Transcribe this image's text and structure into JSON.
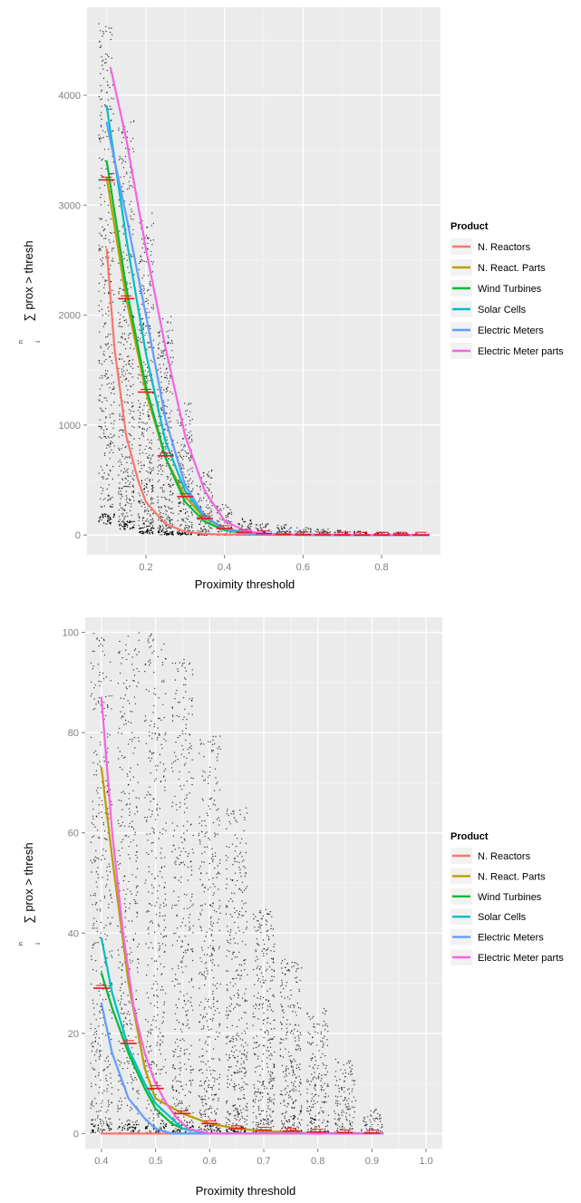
{
  "chart_data": [
    {
      "type": "scatter",
      "title": "",
      "xlabel": "Proximity threshold",
      "ylabel": "∑ prox > thresh",
      "ylabel_sum_top": "n",
      "ylabel_sum_bottom": "i",
      "xlim": [
        0.05,
        0.95
      ],
      "ylim": [
        -180,
        4800
      ],
      "x_ticks": [
        0.2,
        0.4,
        0.6,
        0.8
      ],
      "x_tick_labels": [
        "0.2",
        "0.4",
        "0.6",
        "0.8"
      ],
      "y_ticks": [
        0,
        1000,
        2000,
        3000,
        4000
      ],
      "y_tick_labels": [
        "0",
        "1000",
        "2000",
        "3000",
        "4000"
      ],
      "grid": true,
      "legend": {
        "title": "Product",
        "placement": "right",
        "entries": [
          "N. Reactors",
          "N. React. Parts",
          "Wind Turbines",
          "Solar Cells",
          "Electric Meters",
          "Electric Meter parts"
        ]
      },
      "point_clusters": [
        {
          "x": 0.1,
          "y_min": 100,
          "y_max": 4650
        },
        {
          "x": 0.15,
          "y_min": 50,
          "y_max": 3800
        },
        {
          "x": 0.2,
          "y_min": 10,
          "y_max": 2950
        },
        {
          "x": 0.25,
          "y_min": 0,
          "y_max": 2000
        },
        {
          "x": 0.3,
          "y_min": 0,
          "y_max": 1200
        },
        {
          "x": 0.35,
          "y_min": 0,
          "y_max": 600
        },
        {
          "x": 0.4,
          "y_min": 0,
          "y_max": 280
        },
        {
          "x": 0.45,
          "y_min": 0,
          "y_max": 150
        },
        {
          "x": 0.5,
          "y_min": 0,
          "y_max": 110
        },
        {
          "x": 0.55,
          "y_min": 0,
          "y_max": 95
        },
        {
          "x": 0.6,
          "y_min": 0,
          "y_max": 70
        },
        {
          "x": 0.65,
          "y_min": 0,
          "y_max": 55
        },
        {
          "x": 0.7,
          "y_min": 0,
          "y_max": 45
        },
        {
          "x": 0.75,
          "y_min": 0,
          "y_max": 35
        },
        {
          "x": 0.8,
          "y_min": 0,
          "y_max": 25
        },
        {
          "x": 0.85,
          "y_min": 0,
          "y_max": 18
        },
        {
          "x": 0.9,
          "y_min": 0,
          "y_max": 10
        }
      ],
      "series": [
        {
          "name": "N. Reactors",
          "color": "#F8766D",
          "x": [
            0.1,
            0.12,
            0.15,
            0.18,
            0.2,
            0.25,
            0.3,
            0.35,
            0.4,
            0.5,
            0.6,
            0.7,
            0.8,
            0.92
          ],
          "y": [
            2600,
            1700,
            900,
            500,
            300,
            100,
            30,
            10,
            5,
            2,
            1,
            0,
            0,
            0
          ]
        },
        {
          "name": "N. React. Parts",
          "color": "#B79F00",
          "x": [
            0.1,
            0.15,
            0.2,
            0.25,
            0.3,
            0.35,
            0.4,
            0.45,
            0.5,
            0.6,
            0.7,
            0.8,
            0.92
          ],
          "y": [
            3250,
            2150,
            1300,
            700,
            350,
            150,
            60,
            25,
            10,
            3,
            1,
            0,
            0
          ]
        },
        {
          "name": "Wind Turbines",
          "color": "#00BA38",
          "x": [
            0.1,
            0.15,
            0.2,
            0.25,
            0.3,
            0.35,
            0.4,
            0.45,
            0.5,
            0.6,
            0.7,
            0.8,
            0.92
          ],
          "y": [
            3400,
            2250,
            1350,
            700,
            300,
            120,
            45,
            15,
            5,
            1,
            0,
            0,
            0
          ]
        },
        {
          "name": "Solar Cells",
          "color": "#00BFC4",
          "x": [
            0.1,
            0.15,
            0.2,
            0.25,
            0.3,
            0.35,
            0.4,
            0.45,
            0.5,
            0.6,
            0.7,
            0.8,
            0.92
          ],
          "y": [
            3900,
            2700,
            1650,
            850,
            400,
            160,
            60,
            20,
            7,
            2,
            0,
            0,
            0
          ]
        },
        {
          "name": "Electric Meters",
          "color": "#619CFF",
          "x": [
            0.1,
            0.15,
            0.2,
            0.25,
            0.3,
            0.35,
            0.4,
            0.45,
            0.5,
            0.6,
            0.7,
            0.8,
            0.92
          ],
          "y": [
            3750,
            2900,
            2000,
            1050,
            450,
            170,
            55,
            15,
            5,
            1,
            0,
            0,
            0
          ]
        },
        {
          "name": "Electric Meter parts",
          "color": "#F564E3",
          "x": [
            0.11,
            0.15,
            0.2,
            0.25,
            0.3,
            0.35,
            0.4,
            0.45,
            0.5,
            0.6,
            0.7,
            0.8,
            0.92
          ],
          "y": [
            4250,
            3600,
            2600,
            1700,
            900,
            400,
            130,
            40,
            12,
            3,
            1,
            0,
            0
          ]
        }
      ],
      "means": [
        {
          "x": 0.1,
          "y": 3230
        },
        {
          "x": 0.15,
          "y": 2150
        },
        {
          "x": 0.2,
          "y": 1300
        },
        {
          "x": 0.25,
          "y": 720
        },
        {
          "x": 0.3,
          "y": 350
        },
        {
          "x": 0.35,
          "y": 150
        },
        {
          "x": 0.4,
          "y": 60
        },
        {
          "x": 0.45,
          "y": 25
        },
        {
          "x": 0.5,
          "y": 12
        },
        {
          "x": 0.55,
          "y": 6
        },
        {
          "x": 0.6,
          "y": 3
        },
        {
          "x": 0.65,
          "y": 2
        },
        {
          "x": 0.7,
          "y": 1
        },
        {
          "x": 0.75,
          "y": 0
        },
        {
          "x": 0.8,
          "y": 0
        },
        {
          "x": 0.85,
          "y": 0
        },
        {
          "x": 0.9,
          "y": 0
        }
      ]
    },
    {
      "type": "scatter",
      "title": "",
      "xlabel": "Proximity threshold",
      "ylabel": "∑ prox > thresh",
      "ylabel_sum_top": "n",
      "ylabel_sum_bottom": "i",
      "xlim": [
        0.37,
        1.03
      ],
      "ylim": [
        -3,
        103
      ],
      "x_ticks": [
        0.4,
        0.5,
        0.6,
        0.7,
        0.8,
        0.9,
        1.0
      ],
      "x_tick_labels": [
        "0.4",
        "0.5",
        "0.6",
        "0.7",
        "0.8",
        "0.9",
        "1.0"
      ],
      "y_ticks": [
        0,
        20,
        40,
        60,
        80,
        100
      ],
      "y_tick_labels": [
        "0",
        "20",
        "40",
        "60",
        "80",
        "100"
      ],
      "grid": true,
      "legend": {
        "title": "Product",
        "placement": "right",
        "entries": [
          "N. Reactors",
          "N. React. Parts",
          "Wind Turbines",
          "Solar Cells",
          "Electric Meters",
          "Electric Meter parts"
        ]
      },
      "point_clusters": [
        {
          "x": 0.4,
          "y_min": 0,
          "y_max": 100
        },
        {
          "x": 0.45,
          "y_min": 0,
          "y_max": 100
        },
        {
          "x": 0.5,
          "y_min": 0,
          "y_max": 100
        },
        {
          "x": 0.55,
          "y_min": 0,
          "y_max": 95
        },
        {
          "x": 0.6,
          "y_min": 0,
          "y_max": 80
        },
        {
          "x": 0.65,
          "y_min": 0,
          "y_max": 65
        },
        {
          "x": 0.7,
          "y_min": 0,
          "y_max": 45
        },
        {
          "x": 0.75,
          "y_min": 0,
          "y_max": 35
        },
        {
          "x": 0.8,
          "y_min": 0,
          "y_max": 25
        },
        {
          "x": 0.85,
          "y_min": 0,
          "y_max": 15
        },
        {
          "x": 0.9,
          "y_min": 0,
          "y_max": 5
        }
      ],
      "series": [
        {
          "name": "N. Reactors",
          "color": "#F8766D",
          "x": [
            0.4,
            0.5,
            0.6,
            0.7,
            0.8,
            0.92
          ],
          "y": [
            0,
            0,
            0,
            0,
            0,
            0
          ]
        },
        {
          "name": "N. React. Parts",
          "color": "#B79F00",
          "x": [
            0.4,
            0.42,
            0.45,
            0.48,
            0.5,
            0.55,
            0.6,
            0.65,
            0.7,
            0.8,
            0.92
          ],
          "y": [
            73,
            55,
            30,
            13,
            7,
            4,
            2,
            1,
            0.5,
            0,
            0
          ]
        },
        {
          "name": "Wind Turbines",
          "color": "#00BA38",
          "x": [
            0.4,
            0.42,
            0.45,
            0.48,
            0.5,
            0.53,
            0.55,
            0.6,
            0.7,
            0.8,
            0.92
          ],
          "y": [
            32,
            25,
            16,
            9,
            5,
            2,
            1,
            0,
            0,
            0,
            0
          ]
        },
        {
          "name": "Solar Cells",
          "color": "#00BFC4",
          "x": [
            0.4,
            0.42,
            0.45,
            0.48,
            0.5,
            0.53,
            0.55,
            0.6,
            0.7,
            0.8,
            0.92
          ],
          "y": [
            39,
            28,
            17,
            10,
            6,
            3,
            1,
            0,
            0,
            0,
            0
          ]
        },
        {
          "name": "Electric Meters",
          "color": "#619CFF",
          "x": [
            0.4,
            0.42,
            0.45,
            0.48,
            0.5,
            0.53,
            0.55,
            0.6,
            0.7,
            0.8,
            0.92
          ],
          "y": [
            26,
            16,
            7,
            3,
            1,
            0,
            0,
            0,
            0,
            0,
            0
          ]
        },
        {
          "name": "Electric Meter parts",
          "color": "#F564E3",
          "x": [
            0.4,
            0.42,
            0.44,
            0.46,
            0.48,
            0.5,
            0.52,
            0.54,
            0.56,
            0.6,
            0.7,
            0.8,
            0.92
          ],
          "y": [
            87,
            60,
            40,
            25,
            16,
            10,
            6,
            3,
            1,
            0,
            0,
            0,
            0
          ]
        }
      ],
      "means": [
        {
          "x": 0.4,
          "y": 29
        },
        {
          "x": 0.45,
          "y": 18
        },
        {
          "x": 0.5,
          "y": 9
        },
        {
          "x": 0.55,
          "y": 4
        },
        {
          "x": 0.6,
          "y": 2
        },
        {
          "x": 0.65,
          "y": 1
        },
        {
          "x": 0.7,
          "y": 0.7
        },
        {
          "x": 0.75,
          "y": 0.5
        },
        {
          "x": 0.8,
          "y": 0.3
        },
        {
          "x": 0.85,
          "y": 0.2
        },
        {
          "x": 0.9,
          "y": 0.1
        }
      ]
    }
  ]
}
